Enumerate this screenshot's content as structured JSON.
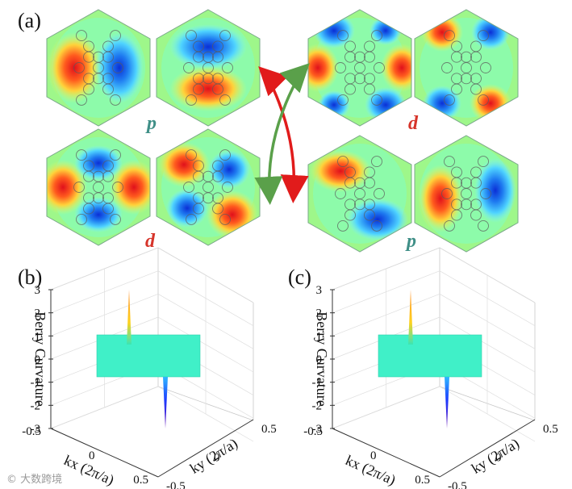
{
  "figure": {
    "panel_labels": {
      "a": "(a)",
      "b": "(b)",
      "c": "(c)"
    },
    "orbital_labels": {
      "top_left": "p",
      "bottom_left": "d",
      "top_right": "d",
      "bottom_right": "p"
    },
    "colors": {
      "p_label": "#3f8f87",
      "d_label": "#d6342a",
      "arrow_red": "#e11b1b",
      "arrow_green": "#5aa04a",
      "surface": "#40f0c8"
    },
    "watermark": "© 大数跨境"
  },
  "chart_data": [
    {
      "type": "surface",
      "panel": "(b)",
      "zlabel": "Berry Curvature",
      "xlabel": "kx (2π/a)",
      "ylabel": "ky (2π/a)",
      "z_ticks": [
        "3",
        "2",
        "1",
        "0",
        "-1",
        "-2",
        "-3"
      ],
      "x_ticks": [
        "-0.5",
        "0",
        "0.5"
      ],
      "y_ticks": [
        "-0.5",
        "0",
        "0.5"
      ],
      "zlim": [
        -3,
        3
      ],
      "peaks": [
        {
          "kx": 0,
          "ky": 0,
          "z": 3
        },
        {
          "kx": 0,
          "ky": 0,
          "z": -3
        }
      ]
    },
    {
      "type": "surface",
      "panel": "(c)",
      "zlabel": "Berry Curvature",
      "xlabel": "kx (2π/a)",
      "ylabel": "ky (2π/a)",
      "z_ticks": [
        "3",
        "2",
        "1",
        "0",
        "-1",
        "-2",
        "-3"
      ],
      "x_ticks": [
        "-0.5",
        "0",
        "0.5"
      ],
      "y_ticks": [
        "-0.5",
        "0",
        "0.5"
      ],
      "zlim": [
        -3,
        3
      ],
      "peaks": [
        {
          "kx": 0,
          "ky": 0,
          "z": 3
        },
        {
          "kx": 0,
          "ky": 0,
          "z": -3
        }
      ]
    }
  ]
}
